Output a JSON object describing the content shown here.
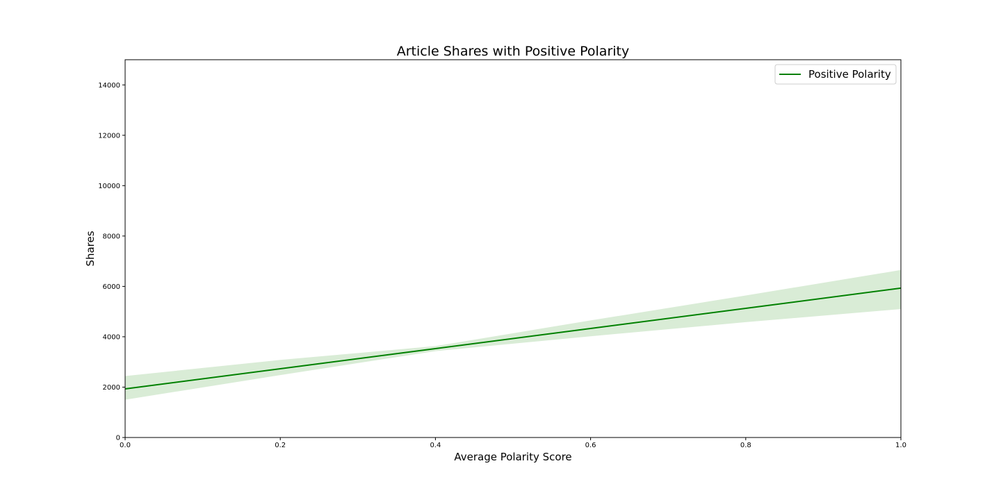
{
  "chart_data": {
    "type": "line",
    "title": "Article Shares with Positive Polarity",
    "xlabel": "Average Polarity Score",
    "ylabel": "Shares",
    "xlim": [
      0.0,
      1.0
    ],
    "ylim": [
      0,
      15000
    ],
    "xticks": [
      "0.0",
      "0.2",
      "0.4",
      "0.6",
      "0.8",
      "1.0"
    ],
    "xtick_values": [
      0.0,
      0.2,
      0.4,
      0.6,
      0.8,
      1.0
    ],
    "yticks": [
      "0",
      "2000",
      "4000",
      "6000",
      "8000",
      "10000",
      "12000",
      "14000"
    ],
    "ytick_values": [
      0,
      2000,
      4000,
      6000,
      8000,
      10000,
      12000,
      14000
    ],
    "grid": false,
    "legend_position": "top-right",
    "series": [
      {
        "name": "Positive Polarity",
        "color": "#008000",
        "band_color": "#d9ecd6",
        "x": [
          0.0,
          0.2,
          0.4,
          0.6,
          0.8,
          1.0
        ],
        "y": [
          1930,
          2730,
          3530,
          4330,
          5130,
          5930
        ],
        "band_upper": [
          2440,
          3080,
          3630,
          4650,
          5640,
          6650
        ],
        "band_lower": [
          1500,
          2480,
          3430,
          4020,
          4580,
          5100
        ]
      }
    ]
  }
}
